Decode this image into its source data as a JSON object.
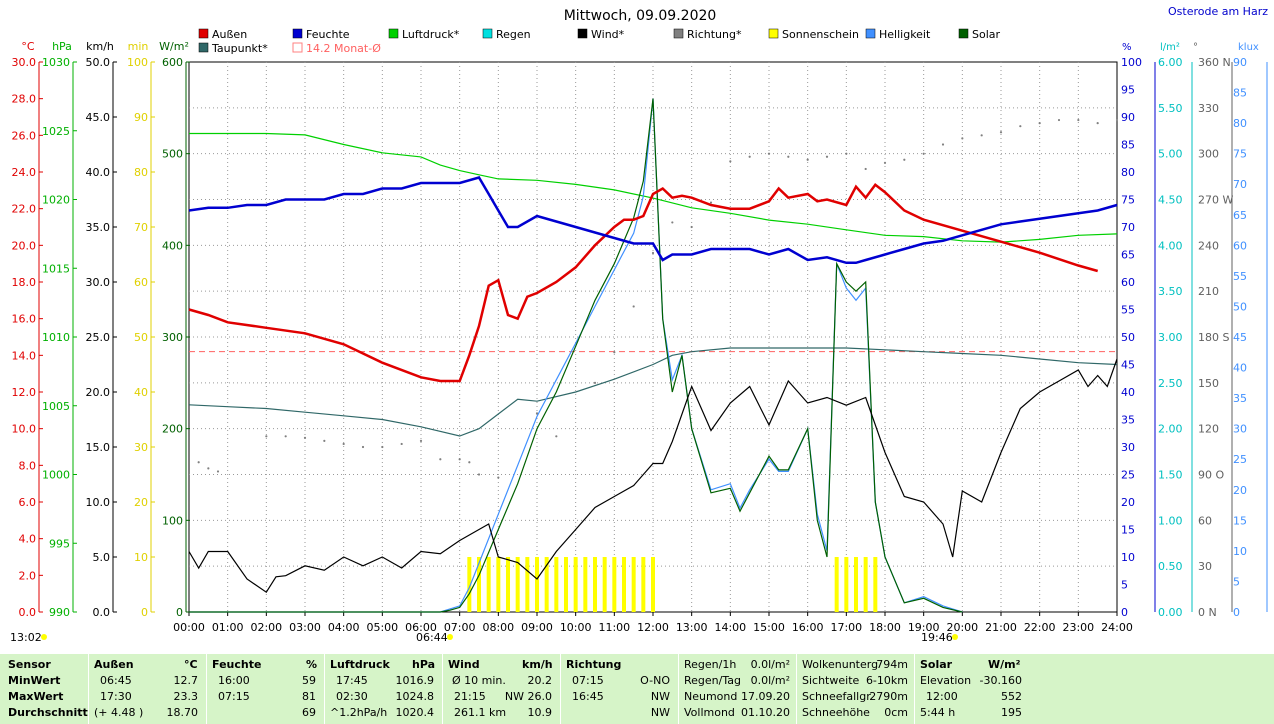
{
  "title": "Mittwoch, 09.09.2020",
  "station": "Osterode am Harz",
  "legend": [
    {
      "label": "Außen",
      "color": "#e00000"
    },
    {
      "label": "Feuchte",
      "color": "#0000d0"
    },
    {
      "label": "Luftdruck*",
      "color": "#00d000"
    },
    {
      "label": "Regen",
      "color": "#00e0e0"
    },
    {
      "label": "Wind*",
      "color": "#000000"
    },
    {
      "label": "Richtung*",
      "color": "#808080"
    },
    {
      "label": "Sonnenschein",
      "color": "#ffff00"
    },
    {
      "label": "Helligkeit",
      "color": "#4090ff"
    },
    {
      "label": "Solar",
      "color": "#006000"
    },
    {
      "label": "Taupunkt*",
      "color": "#306868"
    },
    {
      "label": "14.2 Monat-Ø",
      "color": "#ff8080"
    }
  ],
  "left_axes": [
    {
      "unit": "°C",
      "color": "#e00000",
      "ticks": [
        "30.0",
        "28.0",
        "26.0",
        "24.0",
        "22.0",
        "20.0",
        "18.0",
        "16.0",
        "14.0",
        "12.0",
        "10.0",
        "8.0",
        "6.0",
        "4.0",
        "2.0",
        "0.0"
      ]
    },
    {
      "unit": "hPa",
      "color": "#00b000",
      "ticks": [
        "1030",
        "1025",
        "1020",
        "1015",
        "1010",
        "1005",
        "1000",
        "995",
        "990"
      ]
    },
    {
      "unit": "km/h",
      "color": "#000000",
      "ticks": [
        "50.0",
        "45.0",
        "40.0",
        "35.0",
        "30.0",
        "25.0",
        "20.0",
        "15.0",
        "10.0",
        "5.0",
        "0.0"
      ]
    },
    {
      "unit": "min",
      "color": "#e0d000",
      "ticks": [
        "100",
        "90",
        "80",
        "70",
        "60",
        "50",
        "40",
        "30",
        "20",
        "10",
        "0"
      ]
    },
    {
      "unit": "W/m²",
      "color": "#006000",
      "ticks": [
        "600",
        "500",
        "400",
        "300",
        "200",
        "100",
        "0"
      ]
    }
  ],
  "right_axes": [
    {
      "unit": "%",
      "color": "#0000d0",
      "ticks": [
        "100",
        "95",
        "90",
        "85",
        "80",
        "75",
        "70",
        "65",
        "60",
        "55",
        "50",
        "45",
        "40",
        "35",
        "30",
        "25",
        "20",
        "15",
        "10",
        "5",
        "0"
      ]
    },
    {
      "unit": "l/m²",
      "color": "#00c0c0",
      "ticks": [
        "6.00",
        "5.50",
        "5.00",
        "4.50",
        "4.00",
        "3.50",
        "3.00",
        "2.50",
        "2.00",
        "1.50",
        "1.00",
        "0.50",
        "0.00"
      ]
    },
    {
      "unit": "°",
      "color": "#606060",
      "ticks": [
        "360 N",
        "330",
        "300",
        "270 W",
        "240",
        "210",
        "180 S",
        "150",
        "120",
        "90 O",
        "60",
        "30",
        "0 N"
      ]
    },
    {
      "unit": "klux",
      "color": "#4090ff",
      "ticks": [
        "90",
        "85",
        "80",
        "75",
        "70",
        "65",
        "60",
        "55",
        "50",
        "45",
        "40",
        "35",
        "30",
        "25",
        "20",
        "15",
        "10",
        "5",
        "0"
      ]
    }
  ],
  "time_ticks": [
    "00:00",
    "01:00",
    "02:00",
    "03:00",
    "04:00",
    "05:00",
    "06:00",
    "07:00",
    "08:00",
    "09:00",
    "10:00",
    "11:00",
    "12:00",
    "13:00",
    "14:00",
    "15:00",
    "16:00",
    "17:00",
    "18:00",
    "19:00",
    "20:00",
    "21:00",
    "22:00",
    "23:00",
    "24:00"
  ],
  "markers": {
    "now": "13:02",
    "sunrise": "06:44",
    "sunset": "19:46"
  },
  "chart_data": {
    "type": "line",
    "title": "Mittwoch, 09.09.2020",
    "x_unit": "hours",
    "monthly_avg_temp": 14.2,
    "series": [
      {
        "name": "Außen",
        "unit": "°C",
        "color": "#e00000",
        "x": [
          0,
          0.5,
          1,
          2,
          3,
          4,
          5,
          6,
          6.5,
          7,
          7.25,
          7.5,
          7.75,
          8,
          8.25,
          8.5,
          8.75,
          9,
          9.5,
          10,
          10.5,
          11,
          11.25,
          11.5,
          11.75,
          12,
          12.25,
          12.5,
          12.75,
          13,
          13.5,
          14,
          14.5,
          15,
          15.25,
          15.5,
          16,
          16.25,
          16.5,
          17,
          17.25,
          17.5,
          17.75,
          18,
          18.5,
          19,
          20,
          21,
          22,
          23,
          23.5
        ],
        "y": [
          16.5,
          16.2,
          15.8,
          15.5,
          15.2,
          14.6,
          13.6,
          12.8,
          12.6,
          12.6,
          14,
          15.6,
          17.8,
          18.1,
          16.2,
          16,
          17.2,
          17.4,
          18,
          18.8,
          20,
          21,
          21.4,
          21.4,
          21.6,
          22.8,
          23.1,
          22.6,
          22.7,
          22.6,
          22.2,
          22,
          22,
          22.4,
          23.1,
          22.6,
          22.8,
          22.4,
          22.5,
          22.2,
          23.2,
          22.6,
          23.3,
          22.9,
          21.9,
          21.4,
          20.8,
          20.2,
          19.6,
          18.9,
          18.6
        ]
      },
      {
        "name": "Feuchte",
        "unit": "%",
        "color": "#0000d0",
        "x": [
          0,
          0.5,
          1,
          1.5,
          2,
          2.5,
          3,
          3.5,
          4,
          4.5,
          5,
          5.5,
          6,
          6.5,
          7,
          7.5,
          7.75,
          8,
          8.25,
          8.5,
          9,
          9.5,
          10,
          10.5,
          11,
          11.5,
          12,
          12.25,
          12.5,
          13,
          13.5,
          14,
          14.5,
          15,
          15.5,
          16,
          16.5,
          17,
          17.25,
          17.5,
          18,
          18.5,
          19,
          19.5,
          20,
          20.5,
          21,
          21.5,
          22,
          22.5,
          23,
          23.5,
          24
        ],
        "y": [
          73,
          73.5,
          73.5,
          74,
          74,
          75,
          75,
          75,
          76,
          76,
          77,
          77,
          78,
          78,
          78,
          79,
          76,
          73,
          70,
          70,
          72,
          71,
          70,
          69,
          68,
          67,
          67,
          64,
          65,
          65,
          66,
          66,
          66,
          65,
          66,
          64,
          64.5,
          63.5,
          63.5,
          64,
          65,
          66,
          67,
          67.5,
          68.5,
          69.5,
          70.5,
          71,
          71.5,
          72,
          72.5,
          73,
          74
        ]
      },
      {
        "name": "Luftdruck*",
        "unit": "hPa",
        "color": "#00d000",
        "x": [
          0,
          1,
          2,
          3,
          4,
          5,
          6,
          6.5,
          7,
          7.5,
          8,
          9,
          10,
          11,
          12,
          13,
          14,
          15,
          16,
          17,
          18,
          19,
          20,
          21,
          22,
          23,
          24
        ],
        "y": [
          1024.8,
          1024.8,
          1024.8,
          1024.7,
          1024,
          1023.4,
          1023.1,
          1022.5,
          1022.1,
          1021.8,
          1021.5,
          1021.4,
          1021.1,
          1020.7,
          1020.1,
          1019.4,
          1019,
          1018.5,
          1018.2,
          1017.8,
          1017.4,
          1017.3,
          1017,
          1016.9,
          1017.1,
          1017.4,
          1017.5
        ]
      },
      {
        "name": "Taupunkt*",
        "unit": "°C",
        "color": "#306868",
        "x": [
          0,
          1,
          2,
          3,
          4,
          5,
          6,
          7,
          7.5,
          8,
          8.5,
          9,
          10,
          11,
          12,
          12.5,
          13,
          14,
          15,
          16,
          17,
          18,
          19,
          20,
          21,
          22,
          23,
          24
        ],
        "y": [
          11.3,
          11.2,
          11.1,
          10.9,
          10.7,
          10.5,
          10.1,
          9.6,
          10,
          10.8,
          11.6,
          11.5,
          12,
          12.7,
          13.5,
          14,
          14.2,
          14.4,
          14.4,
          14.4,
          14.4,
          14.3,
          14.2,
          14.1,
          14.0,
          13.8,
          13.6,
          13.5
        ]
      },
      {
        "name": "Wind*",
        "unit": "km/h",
        "color": "#000000",
        "x": [
          0,
          0.25,
          0.5,
          1,
          1.5,
          2,
          2.25,
          2.5,
          3,
          3.5,
          4,
          4.5,
          5,
          5.5,
          6,
          6.5,
          7,
          7.5,
          7.75,
          8,
          8.5,
          9,
          9.5,
          10,
          10.5,
          11,
          11.5,
          12,
          12.25,
          12.5,
          13,
          13.5,
          14,
          14.5,
          15,
          15.5,
          16,
          16.5,
          17,
          17.5,
          18,
          18.5,
          19,
          19.5,
          19.75,
          20,
          20.5,
          21,
          21.5,
          22,
          22.5,
          23,
          23.25,
          23.5,
          23.75,
          24
        ],
        "y": [
          5.5,
          4,
          5.5,
          5.5,
          3,
          1.8,
          3.2,
          3.3,
          4.2,
          3.8,
          5,
          4.2,
          5,
          4,
          5.5,
          5.3,
          6.5,
          7.5,
          8,
          5,
          4.5,
          3,
          5.5,
          7.5,
          9.5,
          10.5,
          11.5,
          13.5,
          13.5,
          15.5,
          20.5,
          16.5,
          19,
          20.5,
          17,
          21,
          19,
          19.5,
          18.8,
          19.5,
          14.5,
          10.5,
          10,
          8,
          5,
          11,
          10,
          14.5,
          18.5,
          20,
          21,
          22,
          20.5,
          21.5,
          20.5,
          23
        ]
      },
      {
        "name": "Richtung*",
        "unit": "°",
        "color": "#808080",
        "x": [
          0.25,
          0.5,
          0.75,
          2,
          2.5,
          3,
          3.5,
          4,
          4.5,
          5,
          5.5,
          6,
          6.5,
          7,
          7.25,
          7.5,
          8,
          9,
          9.5,
          10.5,
          11,
          11.5,
          12,
          12.5,
          13,
          13.5,
          14,
          14.5,
          15,
          15.5,
          16,
          16.5,
          17,
          17.5,
          18,
          18.5,
          19,
          19.5,
          20,
          20.5,
          21,
          21.5,
          22,
          22.5,
          23,
          23.5,
          24
        ],
        "y": [
          98,
          94,
          92,
          115,
          115,
          114,
          112,
          110,
          108,
          108,
          110,
          112,
          100,
          100,
          98,
          90,
          88,
          130,
          115,
          150,
          170,
          200,
          235,
          255,
          252,
          268,
          295,
          298,
          300,
          298,
          296,
          298,
          300,
          290,
          294,
          296,
          300,
          306,
          310,
          312,
          314,
          318,
          320,
          322,
          322,
          320,
          322
        ]
      },
      {
        "name": "Regen",
        "unit": "l/m²",
        "color": "#00e0e0",
        "values": [
          0,
          0,
          0
        ]
      },
      {
        "name": "Solar",
        "unit": "W/m²",
        "color": "#006000",
        "x": [
          0,
          6.5,
          6.75,
          7,
          7.25,
          7.5,
          8,
          8.5,
          9,
          9.5,
          10,
          10.5,
          11,
          11.5,
          11.75,
          12,
          12.25,
          12.5,
          12.75,
          13,
          13.5,
          14,
          14.25,
          14.5,
          15,
          15.25,
          15.5,
          16,
          16.25,
          16.5,
          16.75,
          17,
          17.25,
          17.5,
          17.75,
          18,
          18.5,
          19,
          19.5,
          20
        ],
        "y": [
          0,
          0,
          2,
          5,
          20,
          40,
          90,
          140,
          200,
          240,
          290,
          340,
          380,
          430,
          470,
          560,
          320,
          240,
          280,
          200,
          130,
          135,
          110,
          130,
          170,
          155,
          155,
          200,
          100,
          60,
          380,
          360,
          350,
          360,
          120,
          60,
          10,
          15,
          5,
          0
        ]
      },
      {
        "name": "Helligkeit",
        "unit": "klux",
        "color": "#4090ff",
        "x": [
          0,
          6.5,
          6.75,
          7,
          7.25,
          7.5,
          8,
          8.5,
          9,
          9.5,
          10,
          10.5,
          11,
          11.5,
          11.75,
          12,
          12.25,
          12.5,
          12.75,
          13,
          13.5,
          14,
          14.25,
          14.5,
          15,
          15.25,
          15.5,
          16,
          16.25,
          16.5,
          16.75,
          17,
          17.25,
          17.5,
          17.75,
          18,
          18.5,
          19,
          19.5,
          20
        ],
        "y": [
          0,
          0,
          0.5,
          1,
          4,
          8,
          16,
          24,
          32,
          38,
          44,
          50,
          56,
          62,
          68,
          84,
          48,
          38,
          42,
          30,
          20,
          21,
          17,
          20,
          25,
          23,
          23,
          30,
          16,
          10,
          57,
          53,
          51,
          53,
          18,
          9,
          1.5,
          2.5,
          1,
          0
        ]
      }
    ],
    "sunshine_bars": {
      "unit": "min",
      "hours": [
        7.25,
        7.5,
        7.75,
        8,
        8.25,
        8.5,
        8.75,
        9,
        9.25,
        9.5,
        9.75,
        10,
        10.25,
        10.5,
        10.75,
        11,
        11.25,
        11.5,
        11.75,
        12,
        16.75,
        17,
        17.25,
        17.5,
        17.75
      ],
      "value": 10
    },
    "ylim": {
      "temp": [
        0,
        30
      ],
      "pressure": [
        990,
        1030
      ],
      "wind": [
        0,
        50
      ],
      "humidity": [
        0,
        100
      ],
      "solar": [
        0,
        600
      ],
      "direction": [
        0,
        360
      ],
      "rain": [
        0,
        6
      ],
      "lux": [
        0,
        90
      ]
    }
  },
  "stats": {
    "sensor": {
      "title": "Sensor",
      "rows": [
        "MinWert",
        "MaxWert",
        "Durchschnitt"
      ]
    },
    "aussen": {
      "title": "Außen",
      "unit": "°C",
      "min_time": "06:45",
      "min": "12.7",
      "max_time": "17:30",
      "max": "23.3",
      "avg_note": "(+ 4.48 )",
      "avg": "18.70"
    },
    "feuchte": {
      "title": "Feuchte",
      "unit": "%",
      "min_time": "16:00",
      "min": "59",
      "max_time": "07:15",
      "max": "81",
      "avg": "69"
    },
    "luftdruck": {
      "title": "Luftdruck",
      "unit": "hPa",
      "min_time": "17:45",
      "min": "1016.9",
      "max_time": "02:30",
      "max": "1024.8",
      "avg_note": "^1.2hPa/h",
      "avg": "1020.4"
    },
    "wind": {
      "title": "Wind",
      "unit": "km/h",
      "r1a": "Ø 10 min.",
      "r1b": "20.2",
      "r2a": "21:15",
      "r2b": "NW 26.0",
      "r3a": "261.1 km",
      "r3b": "10.9"
    },
    "richtung": {
      "title": "Richtung",
      "r1a": "07:15",
      "r1b": "O-NO",
      "r2a": "16:45",
      "r2b": "NW",
      "r3b": "NW"
    },
    "regen": {
      "r0a": "Regen/1h",
      "r0b": "0.0l/m²",
      "r1a": "Regen/Tag",
      "r1b": "0.0l/m²",
      "r2a": "Neumond",
      "r2b": "17.09.20",
      "r3a": "Vollmond",
      "r3b": "01.10.20"
    },
    "wolken": {
      "r0a": "Wolkenunterg",
      "r0b": "794m",
      "r1a": "Sichtweite",
      "r1b": "6-10km",
      "r2a": "Schneefallgr",
      "r2b": "2790m",
      "r3a": "Schneehöhe",
      "r3b": "0cm"
    },
    "solar": {
      "title": "Solar",
      "unit": "W/m²",
      "r1a": "Elevation",
      "r1b": "-30.160",
      "r2a": "12:00",
      "r2b": "552",
      "r3a": "5:44 h",
      "r3b": "195"
    }
  }
}
